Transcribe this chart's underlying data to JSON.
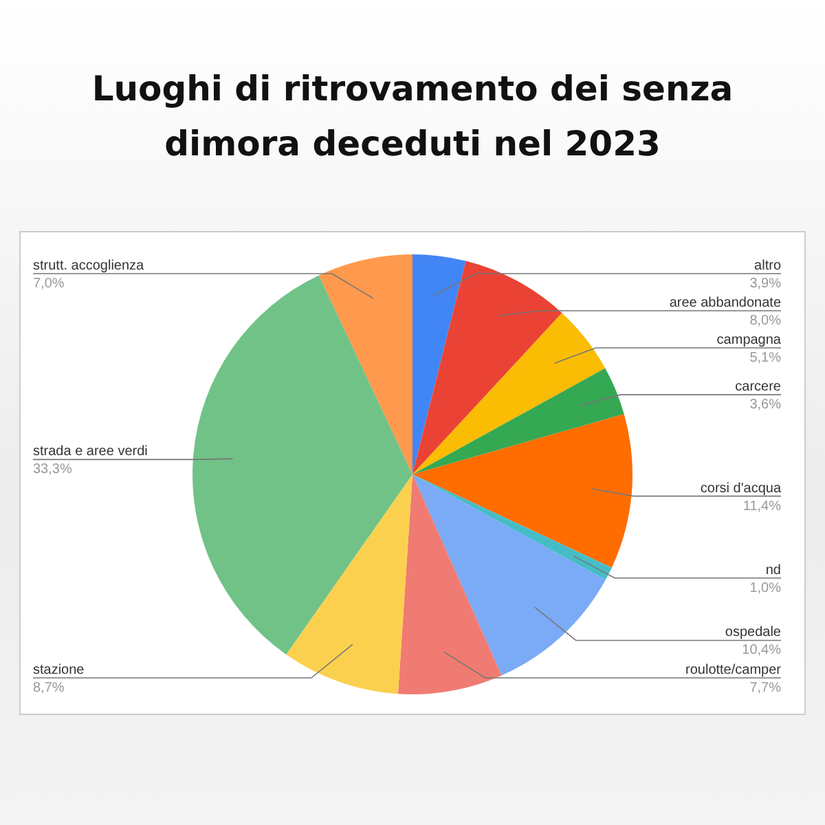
{
  "chart_data": {
    "type": "pie",
    "title": "Luoghi di ritrovamento dei senza dimora deceduti nel 2023",
    "categories": [
      "altro",
      "aree abbandonate",
      "campagna",
      "carcere",
      "corsi d'acqua",
      "nd",
      "ospedale",
      "roulotte/camper",
      "stazione",
      "strada e aree verdi",
      "strutt. accoglienza"
    ],
    "values": [
      3.9,
      8.0,
      5.1,
      3.6,
      11.4,
      1.0,
      10.4,
      7.7,
      8.7,
      33.3,
      7.0
    ],
    "value_labels": [
      "3,9%",
      "8,0%",
      "5,1%",
      "3,6%",
      "11,4%",
      "1,0%",
      "10,4%",
      "7,7%",
      "8,7%",
      "33,3%",
      "7,0%"
    ],
    "colors": [
      "#4285f4",
      "#ea4335",
      "#fbbc04",
      "#34a853",
      "#ff6d01",
      "#46bdc6",
      "#7baaf7",
      "#f07b72",
      "#fcd04f",
      "#71c287",
      "#ff994d"
    ],
    "legend": false
  }
}
